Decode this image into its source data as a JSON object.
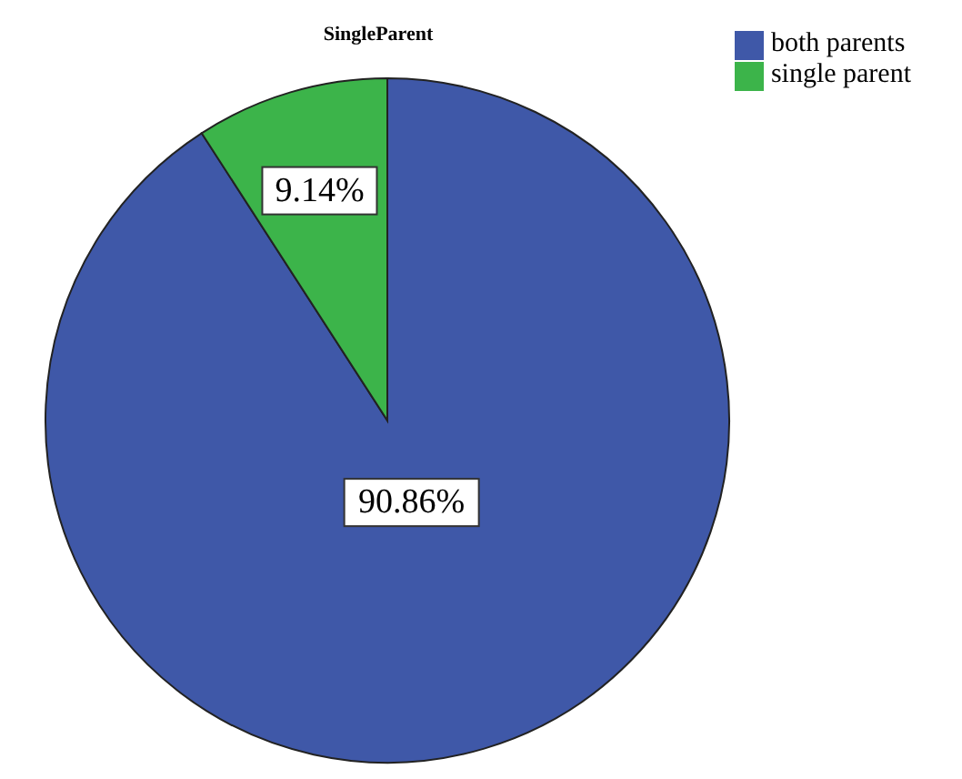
{
  "chart_data": {
    "type": "pie",
    "title": "SingleParent",
    "categories": [
      "both parents",
      "single parent"
    ],
    "values": [
      90.86,
      9.14
    ],
    "colors": [
      "#3f58a8",
      "#3cb44a"
    ],
    "value_labels": [
      "90.86%",
      "9.14%"
    ],
    "legend": "top right"
  }
}
